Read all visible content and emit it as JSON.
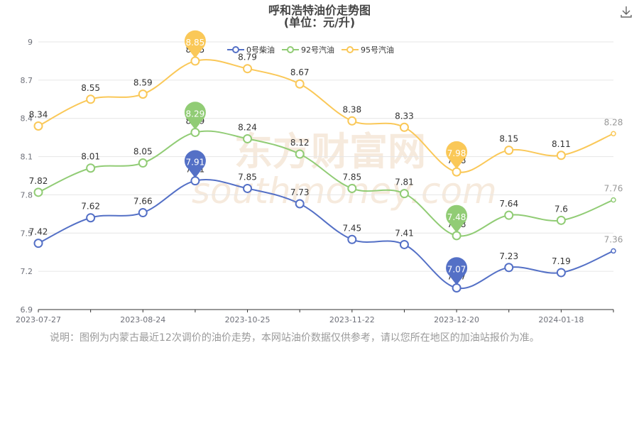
{
  "title": "呼和浩特油价走势图",
  "subtitle": "(单位：元/升)",
  "note": "说明：图例为内蒙古最近12次调价的油价走势，本网站油价数据仅供参考，请以您所在地区的加油站报价为准。",
  "watermark": "东方财富网",
  "watermark_url": "southmoney.com",
  "icons": {
    "download": "download-icon"
  },
  "chart_data": {
    "type": "line",
    "title": "呼和浩特油价走势图",
    "subtitle": "(单位：元/升)",
    "ylim": [
      6.9,
      9.0
    ],
    "yticks": [
      "6.9",
      "7.2",
      "7.5",
      "7.8",
      "8.1",
      "8.4",
      "8.7",
      "9"
    ],
    "ytick_values": [
      6.9,
      7.2,
      7.5,
      7.8,
      8.1,
      8.4,
      8.7,
      9.0
    ],
    "xtick_labels": [
      "2023-07-27",
      "2023-08-24",
      "2023-10-25",
      "2023-11-22",
      "2023-12-20",
      "2024-01-18"
    ],
    "xtick_indices": [
      0,
      2,
      4,
      6,
      8,
      10
    ],
    "n_points": 12,
    "legend_position": "top-center",
    "grid": "horizontal",
    "series": [
      {
        "name": "0号柴油",
        "color": "#5470c6",
        "values": [
          7.42,
          7.62,
          7.66,
          7.91,
          7.85,
          7.73,
          7.45,
          7.41,
          7.07,
          7.23,
          7.19,
          7.36
        ],
        "labels": [
          "7.42",
          "7.62",
          "7.66",
          "7.91",
          "7.85",
          "7.73",
          "7.45",
          "7.41",
          "7.07",
          "7.23",
          "7.19",
          "7.36"
        ],
        "max_index": 3,
        "min_index": 8
      },
      {
        "name": "92号汽油",
        "color": "#91cc75",
        "values": [
          7.82,
          8.01,
          8.05,
          8.29,
          8.24,
          8.12,
          7.85,
          7.81,
          7.48,
          7.64,
          7.6,
          7.76
        ],
        "labels": [
          "7.82",
          "8.01",
          "8.05",
          "8.29",
          "8.24",
          "8.12",
          "7.85",
          "7.81",
          "7.48",
          "7.64",
          "7.6",
          "7.76"
        ],
        "max_index": 3,
        "min_index": 8
      },
      {
        "name": "95号汽油",
        "color": "#fac858",
        "values": [
          8.34,
          8.55,
          8.59,
          8.85,
          8.79,
          8.67,
          8.38,
          8.33,
          7.98,
          8.15,
          8.11,
          8.28
        ],
        "labels": [
          "8.34",
          "8.55",
          "8.59",
          "8.85",
          "8.79",
          "8.67",
          "8.38",
          "8.33",
          "7.98",
          "8.15",
          "8.11",
          "8.28"
        ],
        "max_index": 3,
        "min_index": 8
      }
    ]
  }
}
